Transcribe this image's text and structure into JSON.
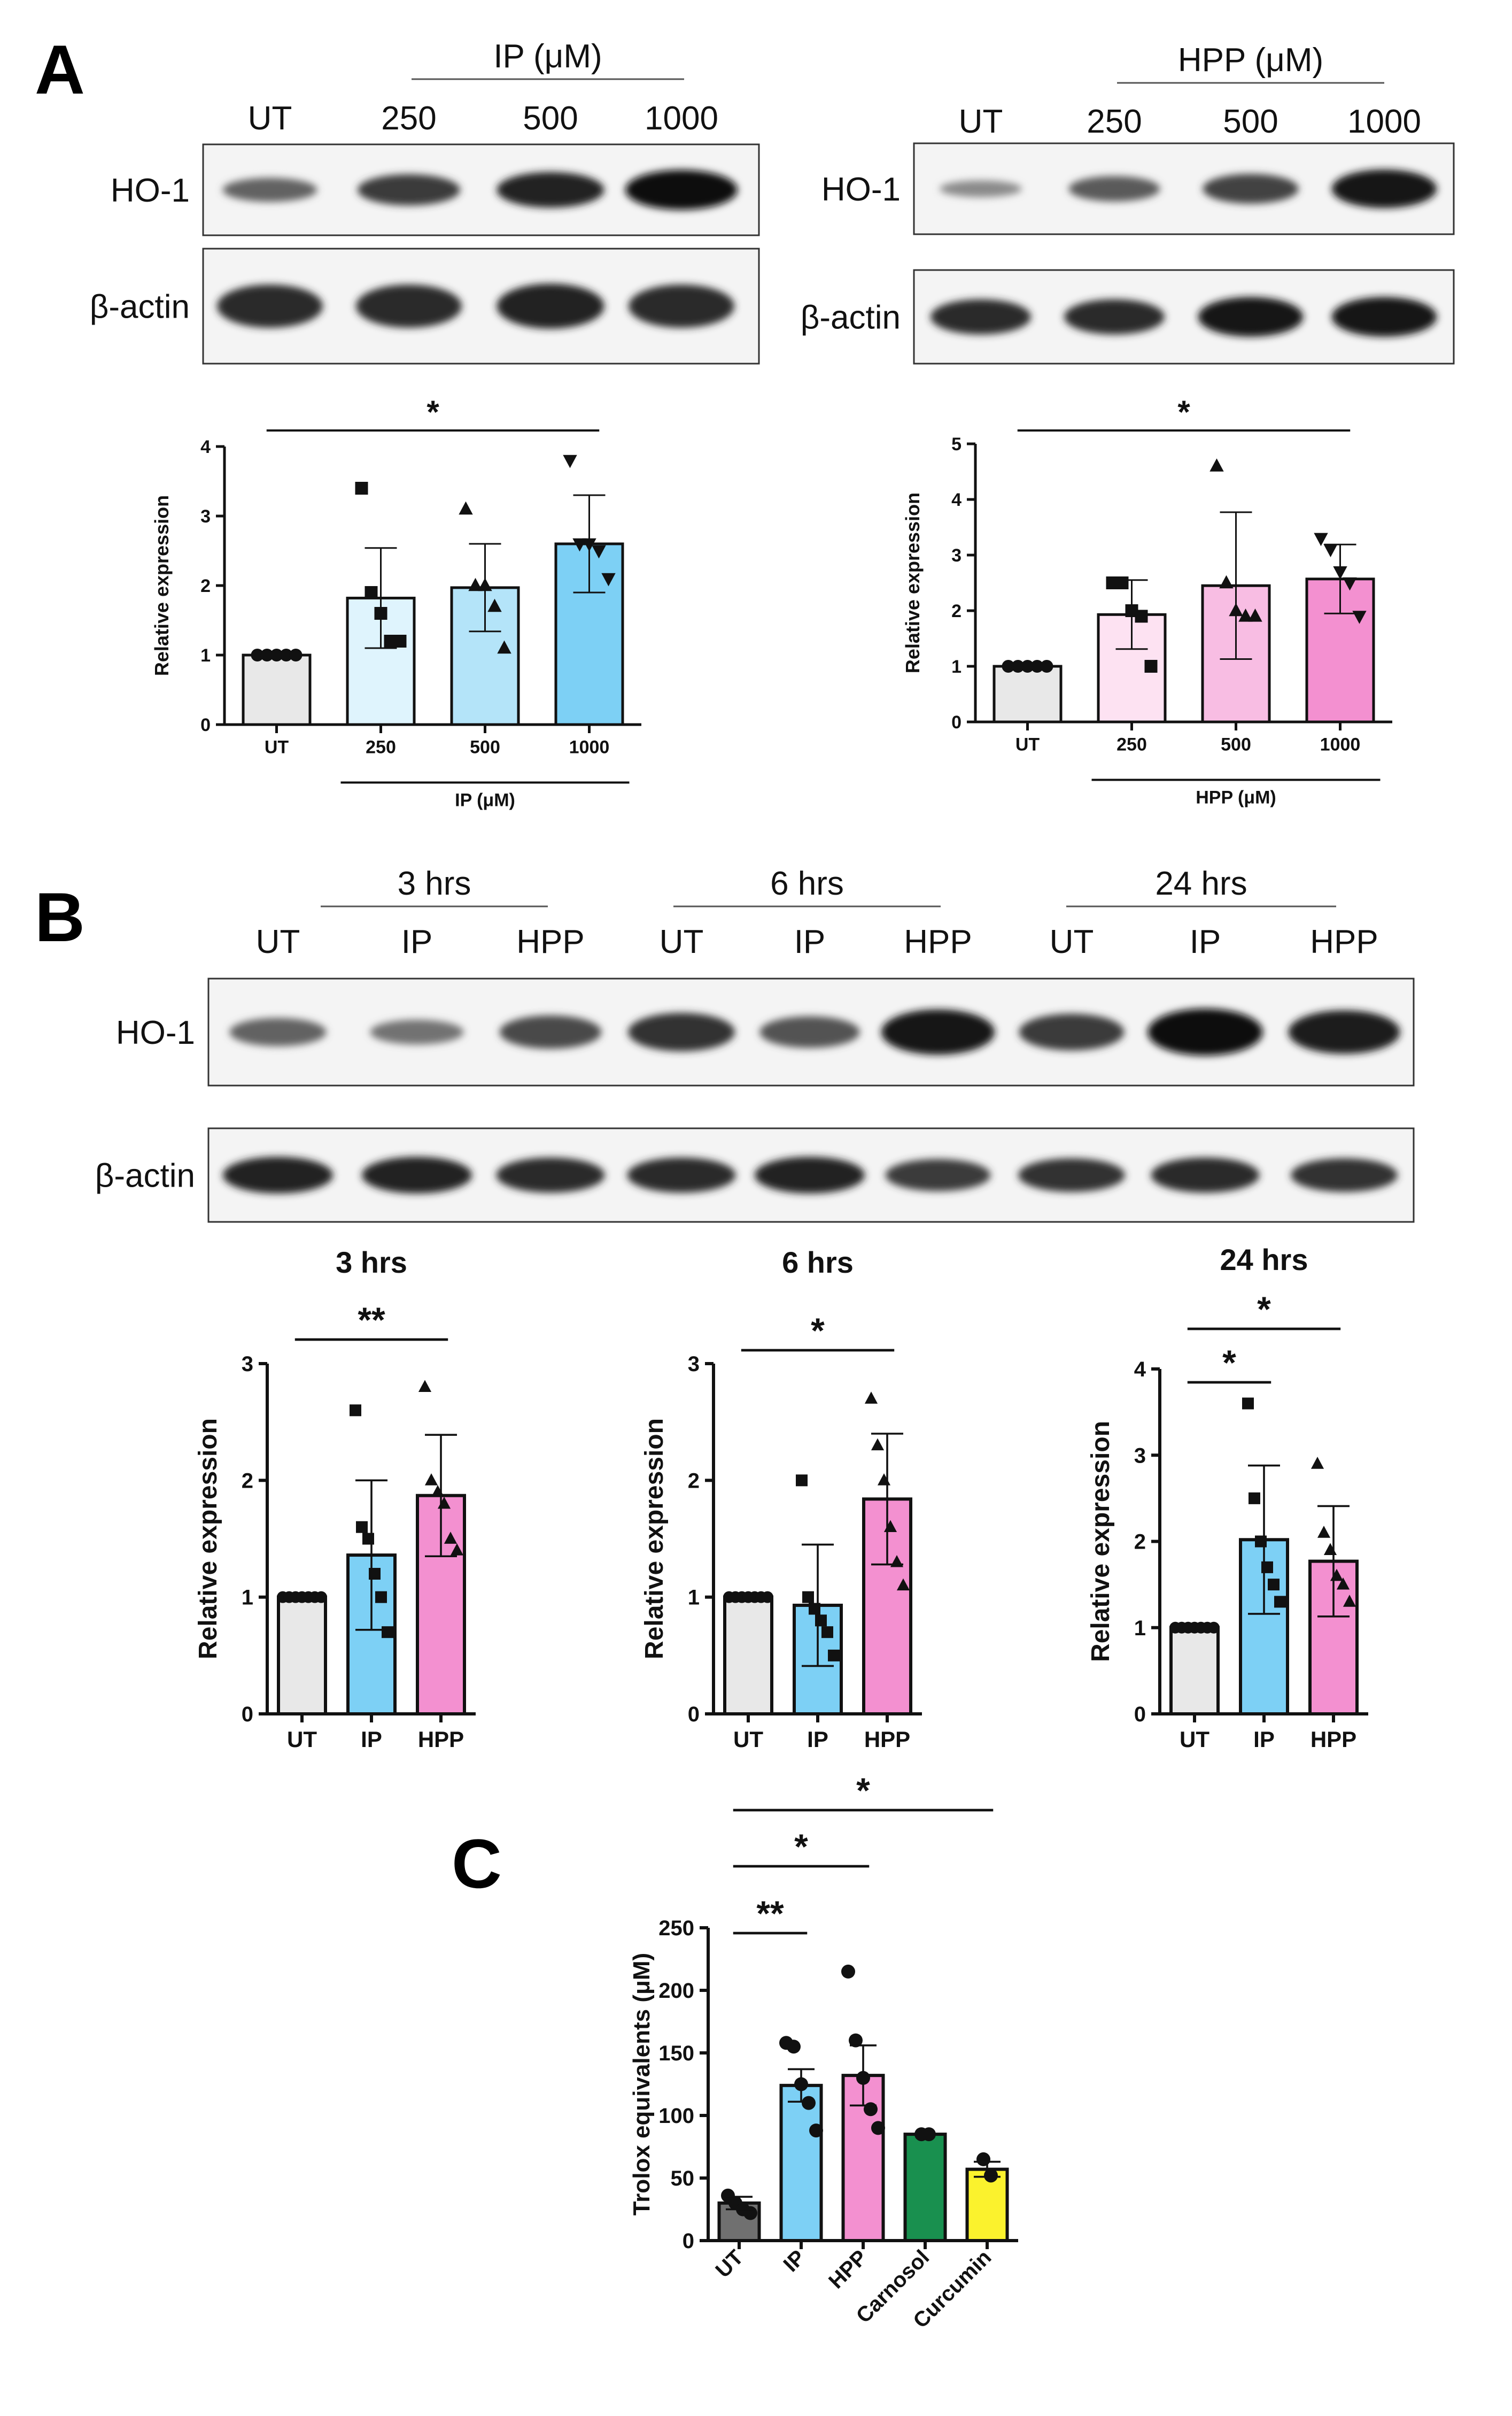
{
  "panel_labels": {
    "A": "A",
    "B": "B",
    "C": "C"
  },
  "colors": {
    "ut_gray": "#e8e8e8",
    "ut_dark": "#707070",
    "ip_light": "#dff4fd",
    "ip_mid": "#b4e4f9",
    "ip_strong": "#7dd0f5",
    "hpp_light": "#fde2f2",
    "hpp_mid": "#f8bde3",
    "hpp_strong": "#f390d0",
    "carnosol": "#19904f",
    "curcumin": "#fbf22d"
  },
  "blots": {
    "A_IP": {
      "treatment_label": "IP (μM)",
      "lanes": [
        "UT",
        "250",
        "500",
        "1000"
      ],
      "rows": [
        {
          "label": "HO-1",
          "intensities": [
            0.45,
            0.7,
            0.85,
            1.0
          ]
        },
        {
          "label": "β-actin",
          "intensities": [
            0.8,
            0.8,
            0.85,
            0.8
          ]
        }
      ]
    },
    "A_HPP": {
      "treatment_label": "HPP (μM)",
      "lanes": [
        "UT",
        "250",
        "500",
        "1000"
      ],
      "rows": [
        {
          "label": "HO-1",
          "intensities": [
            0.2,
            0.5,
            0.65,
            0.95
          ]
        },
        {
          "label": "β-actin",
          "intensities": [
            0.8,
            0.8,
            0.95,
            0.95
          ]
        }
      ]
    },
    "B": {
      "groups": [
        "3 hrs",
        "6 hrs",
        "24 hrs"
      ],
      "lanes": [
        "UT",
        "IP",
        "HPP",
        "UT",
        "IP",
        "HPP",
        "UT",
        "IP",
        "HPP"
      ],
      "rows": [
        {
          "label": "HO-1",
          "intensities": [
            0.45,
            0.35,
            0.6,
            0.75,
            0.55,
            0.95,
            0.7,
            1.0,
            0.9
          ]
        },
        {
          "label": "β-actin",
          "intensities": [
            0.85,
            0.85,
            0.8,
            0.8,
            0.85,
            0.7,
            0.75,
            0.8,
            0.75
          ]
        }
      ]
    }
  },
  "chart_data": [
    {
      "id": "A_IP",
      "type": "bar",
      "categories": [
        "UT",
        "250",
        "500",
        "1000"
      ],
      "values": [
        1.0,
        1.82,
        1.97,
        2.6
      ],
      "errors": [
        0.0,
        0.72,
        0.63,
        0.7
      ],
      "points": [
        [
          1,
          1,
          1,
          1,
          1
        ],
        [
          3.4,
          1.9,
          1.6,
          1.2,
          1.2
        ],
        [
          3.1,
          2.0,
          2.0,
          1.7,
          1.1
        ],
        [
          3.8,
          2.6,
          2.6,
          2.5,
          2.1
        ]
      ],
      "ylabel": "Relative expression",
      "xlabel": "IP (μM)",
      "ylim": [
        0,
        4
      ],
      "yticks": [
        0,
        1,
        2,
        3,
        4
      ],
      "significance": [
        {
          "from": 0,
          "to": 3,
          "label": "*"
        }
      ]
    },
    {
      "id": "A_HPP",
      "type": "bar",
      "categories": [
        "UT",
        "250",
        "500",
        "1000"
      ],
      "values": [
        1.0,
        1.93,
        2.45,
        2.57
      ],
      "errors": [
        0.0,
        0.62,
        1.32,
        0.62
      ],
      "points": [
        [
          1,
          1,
          1,
          1,
          1
        ],
        [
          2.5,
          2.5,
          2.0,
          1.9,
          1.0
        ],
        [
          4.6,
          2.5,
          2.0,
          1.9,
          1.9
        ],
        [
          3.3,
          3.1,
          2.7,
          2.5,
          1.9
        ]
      ],
      "ylabel": "Relative expression",
      "xlabel": "HPP (μM)",
      "ylim": [
        0,
        5
      ],
      "yticks": [
        0,
        1,
        2,
        3,
        4,
        5
      ],
      "significance": [
        {
          "from": 0,
          "to": 3,
          "label": "*"
        }
      ]
    },
    {
      "id": "B_3hrs",
      "type": "bar",
      "title": "3 hrs",
      "categories": [
        "UT",
        "IP",
        "HPP"
      ],
      "values": [
        1.0,
        1.36,
        1.87
      ],
      "errors": [
        0.0,
        0.64,
        0.52
      ],
      "points": [
        [
          1,
          1,
          1,
          1,
          1,
          1,
          1
        ],
        [
          2.6,
          1.6,
          1.5,
          1.2,
          1.0,
          0.7
        ],
        [
          2.8,
          2.0,
          1.9,
          1.8,
          1.5,
          1.4
        ]
      ],
      "ylabel": "Relative expression",
      "ylim": [
        0,
        3
      ],
      "yticks": [
        0,
        1,
        2,
        3
      ],
      "significance": [
        {
          "from": 0,
          "to": 2,
          "label": "**"
        }
      ]
    },
    {
      "id": "B_6hrs",
      "type": "bar",
      "title": "6 hrs",
      "categories": [
        "UT",
        "IP",
        "HPP"
      ],
      "values": [
        1.0,
        0.93,
        1.84
      ],
      "errors": [
        0.0,
        0.52,
        0.56
      ],
      "points": [
        [
          1,
          1,
          1,
          1,
          1,
          1,
          1
        ],
        [
          2.0,
          1.0,
          0.9,
          0.8,
          0.7,
          0.5
        ],
        [
          2.7,
          2.3,
          2.0,
          1.6,
          1.3,
          1.1
        ]
      ],
      "ylabel": "Relative expression",
      "ylim": [
        0,
        3
      ],
      "yticks": [
        0,
        1,
        2,
        3
      ],
      "significance": [
        {
          "from": 0,
          "to": 2,
          "label": "*"
        }
      ]
    },
    {
      "id": "B_24hrs",
      "type": "bar",
      "title": "24 hrs",
      "categories": [
        "UT",
        "IP",
        "HPP"
      ],
      "values": [
        1.0,
        2.02,
        1.77
      ],
      "errors": [
        0.0,
        0.86,
        0.64
      ],
      "points": [
        [
          1,
          1,
          1,
          1,
          1,
          1,
          1
        ],
        [
          3.6,
          2.5,
          2.0,
          1.7,
          1.5,
          1.3
        ],
        [
          2.9,
          2.1,
          1.9,
          1.6,
          1.5,
          1.3
        ]
      ],
      "ylabel": "Relative expression",
      "ylim": [
        0,
        4
      ],
      "yticks": [
        0,
        1,
        2,
        3,
        4
      ],
      "significance": [
        {
          "from": 0,
          "to": 1,
          "label": "*"
        },
        {
          "from": 0,
          "to": 2,
          "label": "*"
        }
      ]
    },
    {
      "id": "C",
      "type": "bar",
      "categories": [
        "UT",
        "IP",
        "HPP",
        "Carnosol",
        "Curcumin"
      ],
      "values": [
        30,
        124,
        132,
        85,
        57
      ],
      "errors": [
        5,
        13,
        24,
        0,
        6
      ],
      "points": [
        [
          36,
          30,
          25,
          22
        ],
        [
          158,
          155,
          125,
          110,
          88
        ],
        [
          215,
          160,
          130,
          105,
          90
        ],
        [
          85,
          85
        ],
        [
          65,
          52
        ]
      ],
      "ylabel": "Trolox equivalents (μM)",
      "ylim": [
        0,
        250
      ],
      "yticks": [
        0,
        50,
        100,
        150,
        200,
        250
      ],
      "significance": [
        {
          "from": 0,
          "to": 1,
          "label": "**"
        },
        {
          "from": 0,
          "to": 2,
          "label": "*"
        },
        {
          "from": 0,
          "to": 4,
          "label": "*"
        }
      ]
    }
  ]
}
